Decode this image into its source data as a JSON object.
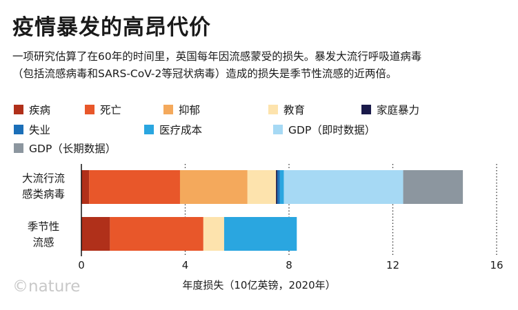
{
  "header": {
    "title": "疫情暴发的高昂代价",
    "subtitle_line1": "一项研究估算了在60年的时间里，英国每年因流感蒙受的损失。暴发大流行呼吸道病毒",
    "subtitle_line2": "（包括流感病毒和SARS-CoV-2等冠状病毒）造成的损失是季节性流感的近两倍。"
  },
  "logo": {
    "text": "©nature"
  },
  "chart_data": {
    "type": "bar",
    "orientation": "horizontal",
    "stacked": true,
    "categories": [
      {
        "line1": "大流行流",
        "line2": "感类病毒"
      },
      {
        "line1": "季节性",
        "line2": "流感"
      }
    ],
    "series": [
      {
        "name": "疾病",
        "color": "#b0301a",
        "values": [
          0.3,
          1.1
        ]
      },
      {
        "name": "死亡",
        "color": "#e8572a",
        "values": [
          3.5,
          3.6
        ]
      },
      {
        "name": "抑郁",
        "color": "#f4a95c",
        "values": [
          2.6,
          0
        ]
      },
      {
        "name": "教育",
        "color": "#fde3ad",
        "values": [
          1.1,
          0.8
        ]
      },
      {
        "name": "家庭暴力",
        "color": "#1a1a4a",
        "values": [
          0.05,
          0
        ]
      },
      {
        "name": "失业",
        "color": "#1b6fb8",
        "values": [
          0.1,
          0
        ]
      },
      {
        "name": "医疗成本",
        "color": "#2aa6e0",
        "values": [
          0.15,
          2.8
        ]
      },
      {
        "name": "GDP（即时数据）",
        "color": "#a6d9f4",
        "values": [
          4.6,
          0
        ]
      },
      {
        "name": "GDP（长期数据）",
        "color": "#8c969f",
        "values": [
          2.3,
          0
        ]
      }
    ],
    "xlabel": "年度损失（10亿英镑，2020年）",
    "xlim": [
      0,
      16
    ],
    "xticks": [
      "0",
      "4",
      "8",
      "12",
      "16"
    ],
    "grid": "vertical-dotted",
    "legend_position": "top"
  }
}
